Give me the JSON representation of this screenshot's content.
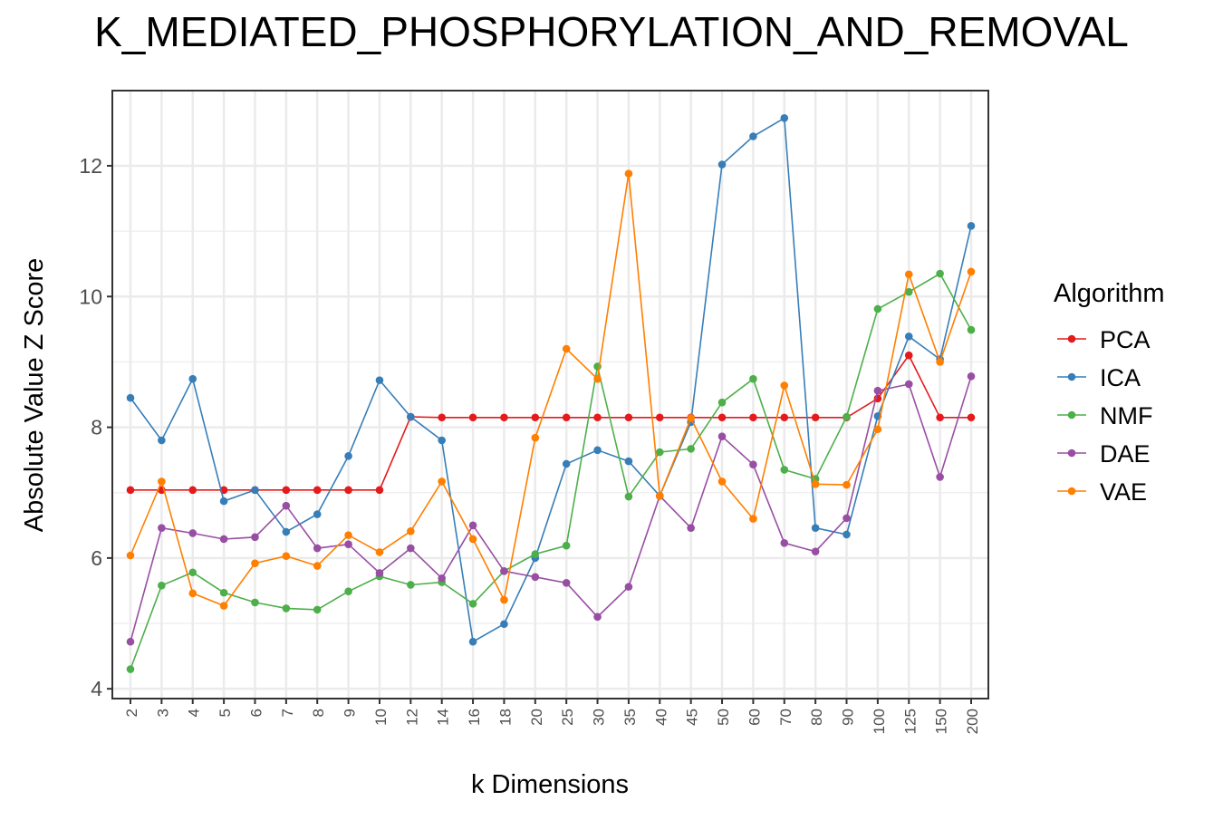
{
  "chart_data": {
    "type": "line",
    "title": "K_MEDIATED_PHOSPHORYLATION_AND_REMOVAL",
    "xlabel": "k Dimensions",
    "ylabel": "Absolute Value Z Score",
    "categories": [
      "2",
      "3",
      "4",
      "5",
      "6",
      "7",
      "8",
      "9",
      "10",
      "12",
      "14",
      "16",
      "18",
      "20",
      "25",
      "30",
      "35",
      "40",
      "45",
      "50",
      "60",
      "70",
      "80",
      "90",
      "100",
      "125",
      "150",
      "200"
    ],
    "yticks": [
      4,
      6,
      8,
      10,
      12
    ],
    "ylim": [
      3.85,
      13.15
    ],
    "grid": true,
    "legend": {
      "title": "Algorithm",
      "position": "right"
    },
    "series": [
      {
        "name": "PCA",
        "color": "#e41a1c",
        "values": [
          7.04,
          7.04,
          7.04,
          7.04,
          7.04,
          7.04,
          7.04,
          7.04,
          7.04,
          8.16,
          8.15,
          8.15,
          8.15,
          8.15,
          8.15,
          8.15,
          8.15,
          8.15,
          8.15,
          8.15,
          8.15,
          8.15,
          8.15,
          8.15,
          8.44,
          9.1,
          8.15,
          8.15
        ]
      },
      {
        "name": "ICA",
        "color": "#377eb8",
        "values": [
          8.45,
          7.8,
          8.74,
          6.87,
          7.04,
          6.4,
          6.67,
          7.56,
          8.72,
          8.16,
          7.8,
          4.72,
          4.99,
          6.0,
          7.44,
          7.65,
          7.48,
          6.95,
          8.08,
          12.02,
          12.45,
          12.73,
          6.46,
          6.36,
          8.17,
          9.39,
          9.04,
          11.08
        ]
      },
      {
        "name": "NMF",
        "color": "#4daf4a",
        "values": [
          4.3,
          5.58,
          5.78,
          5.47,
          5.32,
          5.23,
          5.21,
          5.49,
          5.72,
          5.59,
          5.63,
          5.3,
          5.8,
          6.06,
          6.19,
          8.93,
          6.94,
          7.62,
          7.67,
          8.38,
          8.74,
          7.35,
          7.21,
          8.16,
          9.81,
          10.07,
          10.35,
          9.49
        ]
      },
      {
        "name": "DAE",
        "color": "#984ea3",
        "values": [
          4.72,
          6.46,
          6.38,
          6.29,
          6.32,
          6.8,
          6.15,
          6.21,
          5.77,
          6.15,
          5.69,
          6.5,
          5.8,
          5.71,
          5.62,
          5.1,
          5.56,
          6.95,
          6.46,
          7.86,
          7.43,
          6.23,
          6.1,
          6.61,
          8.56,
          8.66,
          7.24,
          8.78
        ]
      },
      {
        "name": "VAE",
        "color": "#ff7f00",
        "values": [
          6.04,
          7.17,
          5.46,
          5.27,
          5.92,
          6.03,
          5.88,
          6.35,
          6.09,
          6.41,
          7.17,
          6.29,
          5.36,
          7.84,
          9.2,
          8.74,
          11.88,
          6.95,
          8.14,
          7.17,
          6.6,
          8.64,
          7.13,
          7.12,
          7.97,
          10.34,
          9.0,
          10.38
        ]
      }
    ]
  }
}
